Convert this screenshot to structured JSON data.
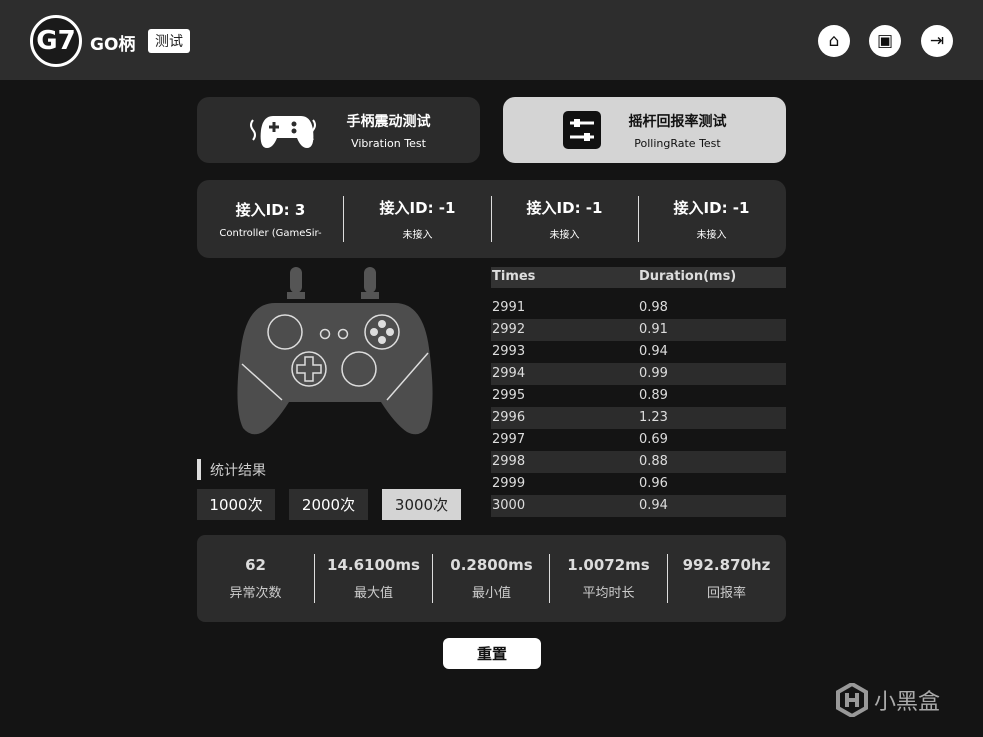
{
  "header": {
    "logo_text": "G7",
    "brand": "GO柄",
    "tag": "测试",
    "icons": [
      "home-icon",
      "tv-icon",
      "logout-icon"
    ]
  },
  "tabs": [
    {
      "title": "手柄震动测试",
      "subtitle": "Vibration Test",
      "icon": "gamepad-vibration-icon",
      "active": false
    },
    {
      "title": "摇杆回报率测试",
      "subtitle": "PollingRate Test",
      "icon": "sliders-icon",
      "active": true
    }
  ],
  "controllers": [
    {
      "id": "接入ID: 3",
      "name": "Controller (GameSir-"
    },
    {
      "id": "接入ID: -1",
      "name": "未接入"
    },
    {
      "id": "接入ID: -1",
      "name": "未接入"
    },
    {
      "id": "接入ID: -1",
      "name": "未接入"
    }
  ],
  "stats": {
    "label": "统计结果",
    "counts": [
      {
        "label": "1000次",
        "active": false
      },
      {
        "label": "2000次",
        "active": false
      },
      {
        "label": "3000次",
        "active": true
      }
    ]
  },
  "table": {
    "headers": [
      "Times",
      "Duration(ms)"
    ],
    "rows": [
      [
        "2991",
        "0.98"
      ],
      [
        "2992",
        "0.91"
      ],
      [
        "2993",
        "0.94"
      ],
      [
        "2994",
        "0.99"
      ],
      [
        "2995",
        "0.89"
      ],
      [
        "2996",
        "1.23"
      ],
      [
        "2997",
        "0.69"
      ],
      [
        "2998",
        "0.88"
      ],
      [
        "2999",
        "0.96"
      ],
      [
        "3000",
        "0.94"
      ]
    ]
  },
  "summary": [
    {
      "value": "62",
      "label": "异常次数"
    },
    {
      "value": "14.6100ms",
      "label": "最大值"
    },
    {
      "value": "0.2800ms",
      "label": "最小值"
    },
    {
      "value": "1.0072ms",
      "label": "平均时长"
    },
    {
      "value": "992.870hz",
      "label": "回报率"
    }
  ],
  "reset_label": "重置",
  "watermark": "小黑盒"
}
